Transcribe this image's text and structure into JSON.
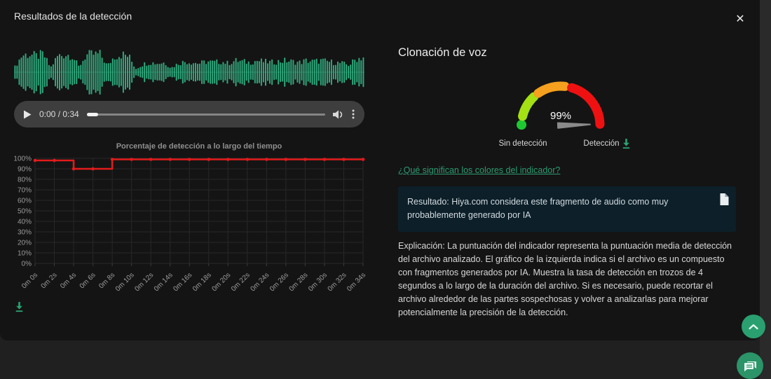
{
  "dialog": {
    "title": "Resultados de la detección",
    "close_glyph": "✕"
  },
  "audio_player": {
    "time": "0:00 / 0:34"
  },
  "waveform": {
    "color": "#2fa87c",
    "envelope": [
      0.3,
      0.95,
      1.0,
      0.9,
      1.0,
      0.25,
      0.9,
      1.0,
      0.95,
      0.3,
      0.95,
      1.0,
      1.0,
      0.35,
      0.9,
      1.0,
      0.9,
      0.2,
      0.45,
      0.55,
      0.5,
      0.55,
      0.25,
      0.5,
      0.6,
      0.55,
      0.5,
      0.6,
      0.55,
      0.6,
      0.5,
      0.65,
      0.6,
      0.55,
      0.65,
      0.6,
      0.55,
      0.6,
      0.65,
      0.6,
      0.55,
      0.65,
      0.6,
      0.65,
      0.6,
      0.55,
      0.5,
      0.4,
      0.75,
      0.85
    ]
  },
  "chart_data": {
    "type": "line",
    "stepped": true,
    "title": "Porcentaje de detección a lo largo del tiempo",
    "categories": [
      "0m 0s",
      "0m 2s",
      "0m 4s",
      "0m 6s",
      "0m 8s",
      "0m 10s",
      "0m 12s",
      "0m 14s",
      "0m 16s",
      "0m 18s",
      "0m 20s",
      "0m 22s",
      "0m 24s",
      "0m 26s",
      "0m 28s",
      "0m 30s",
      "0m 32s",
      "0m 34s"
    ],
    "values": [
      98,
      98,
      90,
      90,
      99,
      99,
      99,
      99,
      99,
      99,
      99,
      99,
      99,
      99,
      99,
      99,
      99,
      99
    ],
    "xlabel": "",
    "ylabel": "",
    "ylim": [
      0,
      100
    ],
    "ytick_step": 10,
    "ytick_suffix": "%",
    "grid": true,
    "legend": "none",
    "line_color": "#e31b1b"
  },
  "detector": {
    "heading": "Clonación de voz",
    "score": 99,
    "score_label": "99%",
    "left_label": "Sin detección",
    "right_label": "Detección",
    "link": "¿Qué significan los colores del indicador?",
    "result_text": "Resultado: Hiya.com considera este fragmento de audio como muy probablemente generado por IA",
    "explanation": "Explicación: La puntuación del indicador representa la puntuación media de detección del archivo analizado. El gráfico de la izquierda indica si el archivo es un compuesto con fragmentos generados por IA. Muestra la tasa de detección en trozos de 4 segundos a lo largo de la duración del archivo. Si es necesario, puede recortar el archivo alrededor de las partes sospechosas y volver a analizarlas para mejorar potencialmente la precisión de la detección.",
    "gauge_colors": {
      "dot": "#1ec832",
      "low": "#a3e114",
      "mid": "#f5a01f",
      "high": "#ef1111",
      "needle": "#8a8a8a"
    }
  },
  "accent_green": "#2aa173"
}
